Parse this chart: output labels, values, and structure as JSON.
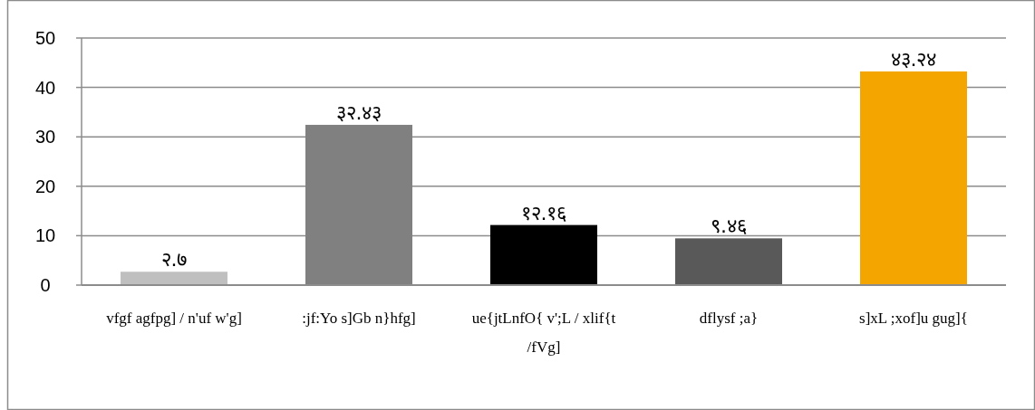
{
  "chart_data": {
    "type": "bar",
    "categories": [
      "vfgf agfpg] / n'uf w'g]",
      ":jf:Yo s]Gb n}hfg]",
      "ue{jtLnfO{ v';L / xlif{t /fVg]",
      "dflysf ;a}",
      "s]xL ;xof]u gug]{"
    ],
    "values": [
      2.7,
      32.43,
      12.16,
      9.46,
      43.24
    ],
    "value_labels": [
      "२.७",
      "३२.४३",
      "१२.१६",
      "९.४६",
      "४३.२४"
    ],
    "colors": [
      "#bfbfbf",
      "#808080",
      "#000000",
      "#595959",
      "#f5a500"
    ],
    "ylim": [
      0,
      50
    ],
    "yticks": [
      0,
      10,
      20,
      30,
      40,
      50
    ],
    "grid": "y"
  }
}
